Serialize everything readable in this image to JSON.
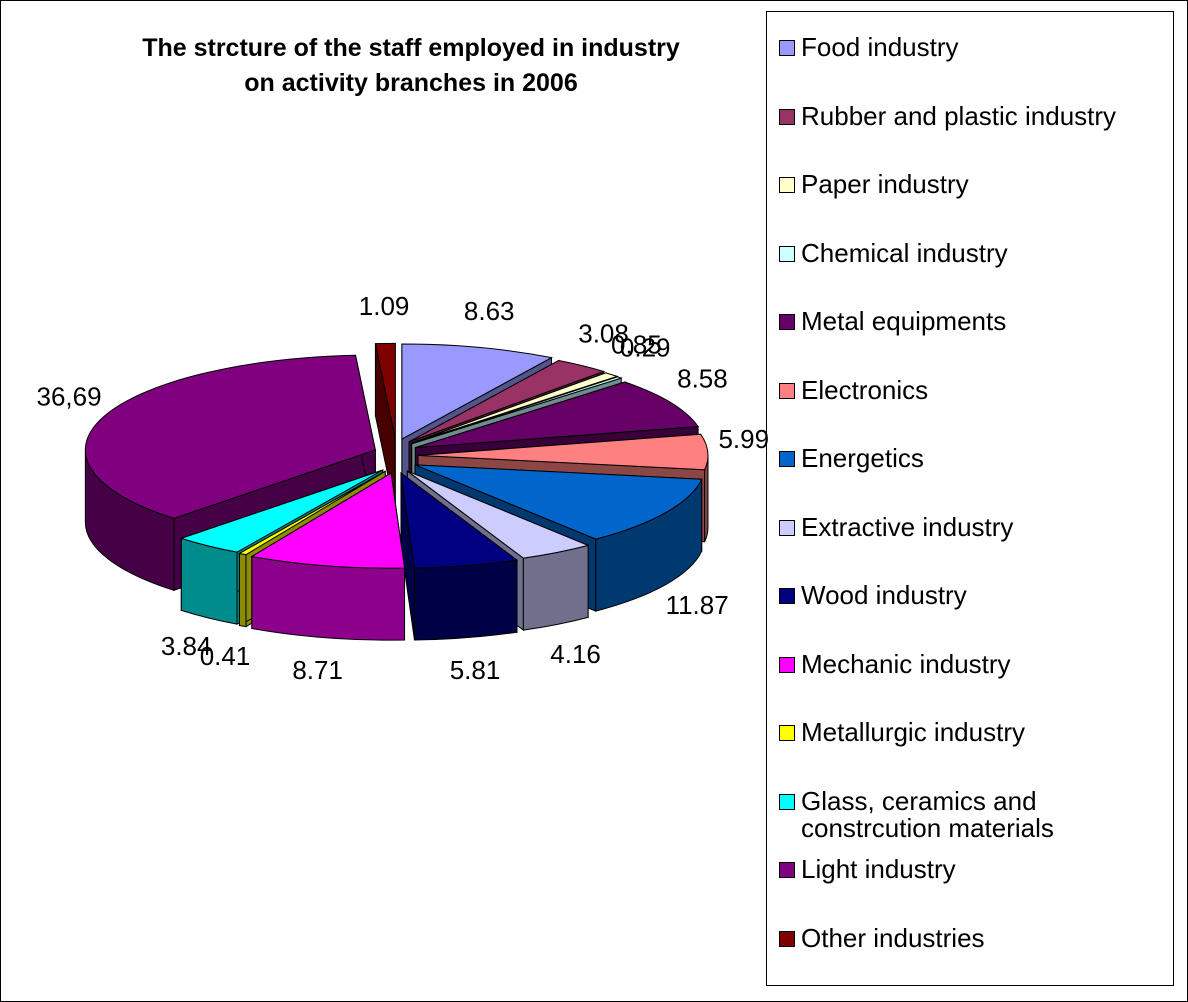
{
  "chart_data": {
    "type": "pie3d",
    "title": "The strcture of the staff employed in industry on activity branches in 2006",
    "categories": [
      "Food industry",
      "Rubber and plastic industry",
      "Paper industry",
      "Chemical industry",
      "Metal equipments",
      "Electronics",
      "Energetics",
      "Extractive industry",
      "Wood industry",
      "Mechanic industry",
      "Metallurgic industry",
      "Glass, ceramics and constrcution materials",
      "Light industry",
      "Other industries"
    ],
    "values": [
      8.63,
      3.08,
      0.85,
      0.29,
      8.58,
      5.99,
      11.87,
      4.16,
      5.81,
      8.71,
      0.41,
      3.84,
      36.69,
      1.09
    ],
    "value_labels": [
      "8.63",
      "3.08",
      "0.85",
      "0.29",
      "8.58",
      "5.99",
      "11.87",
      "4.16",
      "5.81",
      "8.71",
      "0.41",
      "3.84",
      "36,69",
      "1.09"
    ],
    "colors": [
      "#9999ff",
      "#993366",
      "#ffffcc",
      "#ccffff",
      "#660066",
      "#ff8080",
      "#0066cc",
      "#ccccff",
      "#000080",
      "#ff00ff",
      "#ffff00",
      "#00ffff",
      "#800080",
      "#800000"
    ],
    "legend": "right"
  }
}
